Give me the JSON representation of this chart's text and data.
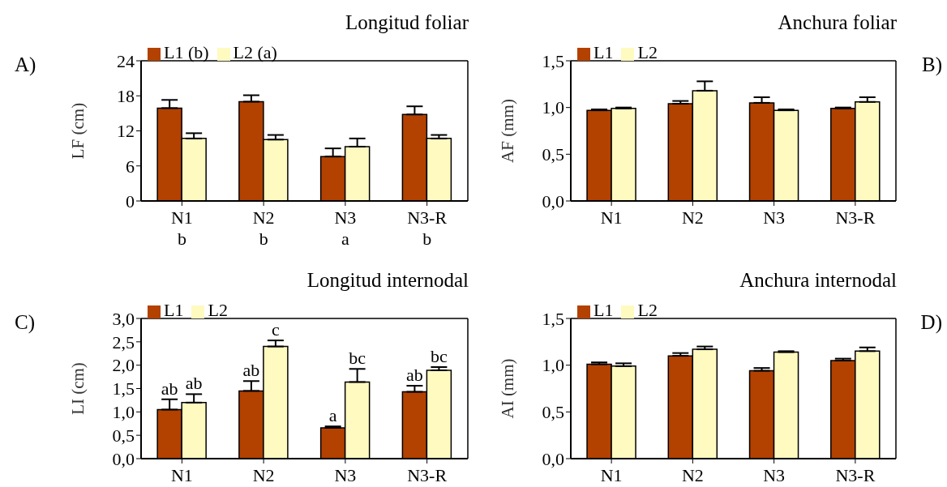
{
  "chart_data": [
    {
      "type": "bar",
      "title": "Longitud foliar",
      "ylabel": "LF (cm)",
      "categories": [
        "N1",
        "N2",
        "N3",
        "N3-R"
      ],
      "legend": "top left",
      "grid": false,
      "ylim": [
        0,
        24
      ],
      "yticks": [
        0,
        6,
        12,
        18,
        24
      ],
      "series": [
        {
          "name": "L1 (b)",
          "color": "#b34100",
          "values": [
            15.9,
            17.0,
            7.6,
            14.8
          ],
          "errors": [
            [
              15.9,
              17.3
            ],
            [
              17.0,
              18.1
            ],
            [
              7.6,
              9.0
            ],
            [
              14.8,
              16.2
            ]
          ]
        },
        {
          "name": "L2 (a)",
          "color": "#fffac0",
          "values": [
            10.7,
            10.5,
            9.3,
            10.7
          ],
          "errors": [
            [
              10.7,
              11.6
            ],
            [
              10.5,
              11.3
            ],
            [
              9.3,
              10.7
            ],
            [
              10.7,
              11.3
            ]
          ]
        }
      ],
      "annotations": [
        "A)",
        "b",
        "b",
        "a",
        "b"
      ]
    },
    {
      "type": "bar",
      "title": "Anchura foliar",
      "ylabel": "AF (mm)",
      "categories": [
        "N1",
        "N2",
        "N3",
        "N3-R"
      ],
      "legend": "top left",
      "grid": false,
      "ylim": [
        0,
        1.5
      ],
      "yticks": [
        {
          "value": 0,
          "label": "0,0"
        },
        {
          "value": 0.5,
          "label": "0,5"
        },
        {
          "value": 1,
          "label": "1,0"
        },
        {
          "value": 1.5,
          "label": "1,5"
        }
      ],
      "series": [
        {
          "name": "L1",
          "color": "#b34100",
          "values": [
            0.97,
            1.04,
            1.05,
            0.99
          ],
          "errors": [
            [
              0.97,
              0.98
            ],
            [
              1.04,
              1.07
            ],
            [
              1.05,
              1.11
            ],
            [
              0.99,
              1.0
            ]
          ]
        },
        {
          "name": "L2",
          "color": "#fffac0",
          "values": [
            0.99,
            1.18,
            0.97,
            1.06
          ],
          "errors": [
            [
              0.99,
              1.0
            ],
            [
              1.18,
              1.28
            ],
            [
              0.97,
              0.98
            ],
            [
              1.06,
              1.11
            ]
          ]
        }
      ],
      "annotations": [
        "B)"
      ]
    },
    {
      "type": "bar",
      "title": "Longitud internodal",
      "ylabel": "LI (cm)",
      "categories": [
        "N1",
        "N2",
        "N3",
        "N3-R"
      ],
      "legend": "top left",
      "grid": false,
      "ylim": [
        0,
        3
      ],
      "yticks": [
        {
          "value": 0,
          "label": "0,0"
        },
        {
          "value": 0.5,
          "label": "0,5"
        },
        {
          "value": 1,
          "label": "1,0"
        },
        {
          "value": 1.5,
          "label": "1,5"
        },
        {
          "value": 2,
          "label": "2,0"
        },
        {
          "value": 2.5,
          "label": "2,5"
        },
        {
          "value": 3,
          "label": "3,0"
        }
      ],
      "series": [
        {
          "name": "L1",
          "color": "#b34100",
          "values": [
            1.05,
            1.45,
            0.66,
            1.43
          ],
          "errors": [
            [
              1.05,
              1.27
            ],
            [
              1.45,
              1.66
            ],
            [
              0.66,
              0.69
            ],
            [
              1.43,
              1.56
            ]
          ],
          "value_labels": [
            "ab",
            "ab",
            "a",
            "ab"
          ]
        },
        {
          "name": "L2",
          "color": "#fffac0",
          "values": [
            1.2,
            2.4,
            1.64,
            1.89
          ],
          "errors": [
            [
              1.2,
              1.38
            ],
            [
              2.4,
              2.53
            ],
            [
              1.64,
              1.92
            ],
            [
              1.89,
              1.96
            ]
          ],
          "value_labels": [
            "ab",
            "c",
            "bc",
            "bc"
          ]
        }
      ],
      "annotations": [
        "C)"
      ]
    },
    {
      "type": "bar",
      "title": "Anchura internodal",
      "ylabel": "AI (mm)",
      "categories": [
        "N1",
        "N2",
        "N3",
        "N3-R"
      ],
      "legend": "top left",
      "grid": false,
      "ylim": [
        0,
        1.5
      ],
      "yticks": [
        {
          "value": 0,
          "label": "0,0"
        },
        {
          "value": 0.5,
          "label": "0,5"
        },
        {
          "value": 1,
          "label": "1,0"
        },
        {
          "value": 1.5,
          "label": "1,5"
        }
      ],
      "series": [
        {
          "name": "L1",
          "color": "#b34100",
          "values": [
            1.01,
            1.1,
            0.94,
            1.05
          ],
          "errors": [
            [
              1.01,
              1.03
            ],
            [
              1.1,
              1.13
            ],
            [
              0.94,
              0.97
            ],
            [
              1.05,
              1.07
            ]
          ]
        },
        {
          "name": "L2",
          "color": "#fffac0",
          "values": [
            0.99,
            1.17,
            1.14,
            1.15
          ],
          "errors": [
            [
              0.99,
              1.02
            ],
            [
              1.17,
              1.2
            ],
            [
              1.14,
              1.15
            ],
            [
              1.15,
              1.19
            ]
          ]
        }
      ],
      "annotations": [
        "D)"
      ]
    }
  ]
}
